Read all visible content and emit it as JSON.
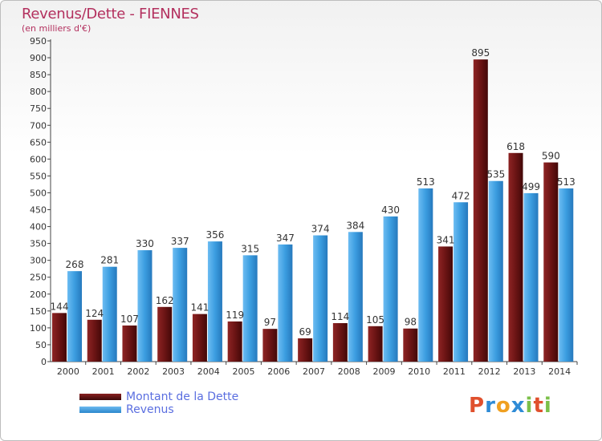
{
  "header": {
    "title": "Revenus/Dette - FIENNES",
    "subtitle": "(en milliers d'€)"
  },
  "chart_data": {
    "type": "bar",
    "categories": [
      "2000",
      "2001",
      "2002",
      "2003",
      "2004",
      "2005",
      "2006",
      "2007",
      "2008",
      "2009",
      "2010",
      "2011",
      "2012",
      "2013",
      "2014"
    ],
    "series": [
      {
        "name": "Montant de la Dette",
        "color": "#6b1414",
        "values": [
          144,
          124,
          107,
          162,
          141,
          119,
          97,
          69,
          114,
          105,
          98,
          341,
          895,
          618,
          590
        ]
      },
      {
        "name": "Revenus",
        "color": "#3b9de0",
        "values": [
          268,
          281,
          330,
          337,
          356,
          315,
          347,
          374,
          384,
          430,
          513,
          472,
          535,
          499,
          513
        ]
      }
    ],
    "ylim": [
      0,
      950
    ],
    "ytick_step": 50,
    "grid": false,
    "legend_position": "bottom-left"
  },
  "logo": {
    "letters": [
      "P",
      "r",
      "o",
      "x",
      "i",
      "t",
      "i"
    ],
    "colors": [
      "#e0502d",
      "#2e8bd6",
      "#f0a020",
      "#2e8bd6",
      "#7cc04a",
      "#e0502d",
      "#7cc04a"
    ]
  }
}
